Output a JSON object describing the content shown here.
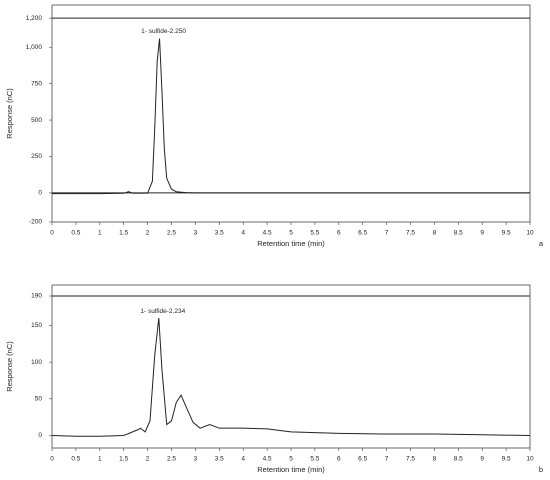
{
  "chart_data": [
    {
      "type": "line",
      "panel_label": "a",
      "x_label": "Retention time (min)",
      "y_label": "Response (nC)",
      "annotation": {
        "text": "1- sulfide-2.250",
        "x": 2.25
      },
      "x": [
        0,
        0.5,
        1.0,
        1.5,
        1.6,
        1.7,
        2.0,
        2.1,
        2.15,
        2.2,
        2.25,
        2.3,
        2.35,
        2.4,
        2.5,
        2.6,
        2.8,
        3.0,
        10
      ],
      "values": [
        -5,
        -5,
        -5,
        -3,
        8,
        -3,
        -2,
        80,
        450,
        900,
        1060,
        700,
        300,
        100,
        25,
        8,
        2,
        0,
        0
      ],
      "color": "#222222",
      "hlines": [
        0,
        1200
      ],
      "xlim": [
        0,
        10
      ],
      "xticks": [
        0,
        0.5,
        1,
        1.5,
        2,
        2.5,
        3,
        3.5,
        4,
        4.5,
        5,
        5.5,
        6,
        6.5,
        7,
        7.5,
        8,
        8.5,
        9,
        9.5,
        10
      ],
      "ylim": [
        -200,
        1290
      ],
      "yticks": [
        -200,
        0,
        250,
        500,
        750,
        {
          "value": 1000,
          "label": "1,000"
        },
        {
          "value": 1200,
          "label": "1,200"
        }
      ]
    },
    {
      "type": "line",
      "panel_label": "b",
      "x_label": "Retention time (min)",
      "y_label": "Response (nC)",
      "annotation": {
        "text": "1- sulfide-2.234",
        "x": 2.234
      },
      "x": [
        0,
        0.5,
        1.0,
        1.5,
        1.8,
        1.85,
        1.95,
        2.05,
        2.15,
        2.234,
        2.3,
        2.4,
        2.5,
        2.6,
        2.7,
        2.8,
        2.95,
        3.1,
        3.3,
        3.5,
        4.0,
        4.5,
        5.0,
        6.0,
        7.0,
        8.0,
        9.0,
        10
      ],
      "values": [
        0,
        -1,
        -1,
        0,
        8,
        10,
        5,
        20,
        110,
        160,
        90,
        15,
        20,
        45,
        55,
        40,
        18,
        10,
        15,
        10,
        10,
        9,
        5,
        3,
        2,
        2,
        1,
        0
      ],
      "color": "#222222",
      "hlines": [
        190
      ],
      "xlim": [
        0,
        10
      ],
      "xticks": [
        0,
        0.5,
        1,
        1.5,
        2,
        2.5,
        3,
        3.5,
        4,
        4.5,
        5,
        5.5,
        6,
        6.5,
        7,
        7.5,
        8,
        8.5,
        9,
        9.5,
        10
      ],
      "ylim": [
        -17,
        205
      ],
      "yticks": [
        0,
        50,
        100,
        150,
        190
      ]
    }
  ]
}
